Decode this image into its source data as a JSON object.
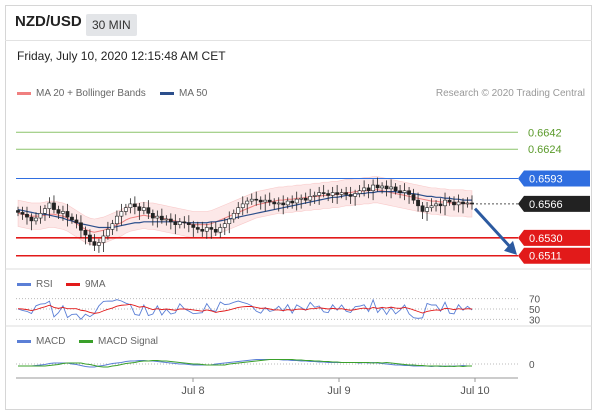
{
  "header": {
    "pair": "NZD/USD",
    "timeframe": "30 MIN"
  },
  "timestamp": "Friday, July 10, 2020 12:15:48 AM CET",
  "legend": {
    "bb_label": "MA 20 + Bollinger Bands",
    "ma50_label": "MA 50",
    "copyright": "Research © 2020 Trading Central"
  },
  "rsi_legend": {
    "rsi_label": "RSI",
    "ma_label": "9MA"
  },
  "macd_legend": {
    "macd_label": "MACD",
    "signal_label": "MACD Signal"
  },
  "colors": {
    "bb": "#f08080",
    "ma50": "#2c4f8c",
    "support": "#e21a1a",
    "resistance_blue": "#2f6ee0",
    "resistance_green": "#8cc46a",
    "up": "#ffffff",
    "down": "#222222",
    "arrow": "#2c5aa0"
  },
  "chart_data": {
    "type": "candlestick",
    "price_axis": {
      "range": [
        0.6498,
        0.6672
      ]
    },
    "levels": [
      {
        "value": 0.6642,
        "label": "0.6642",
        "kind": "resistance",
        "color": "#5a9a2a",
        "line": "#8cc46a"
      },
      {
        "value": 0.6624,
        "label": "0.6624",
        "kind": "resistance",
        "color": "#5a9a2a",
        "line": "#8cc46a"
      },
      {
        "value": 0.6593,
        "label": "0.6593",
        "kind": "resistance",
        "color": "#2f6ee0",
        "line": "#2f6ee0"
      },
      {
        "value": 0.6566,
        "label": "0.6566",
        "kind": "last",
        "color": "#222222",
        "line": "#555555"
      },
      {
        "value": 0.653,
        "label": "0.6530",
        "kind": "support",
        "color": "#e21a1a",
        "line": "#e21a1a"
      },
      {
        "value": 0.6511,
        "label": "0.6511",
        "kind": "support",
        "color": "#e21a1a",
        "line": "#e21a1a"
      }
    ],
    "x_labels": [
      "Jul 8",
      "Jul 9",
      "Jul 10"
    ],
    "close": [
      0.6557,
      0.6555,
      0.6552,
      0.6548,
      0.6551,
      0.6556,
      0.6561,
      0.6567,
      0.656,
      0.6556,
      0.6558,
      0.6552,
      0.6549,
      0.6546,
      0.6538,
      0.6533,
      0.6526,
      0.6522,
      0.6525,
      0.6532,
      0.6539,
      0.6545,
      0.6553,
      0.6558,
      0.6562,
      0.6566,
      0.6563,
      0.6559,
      0.6562,
      0.6556,
      0.6551,
      0.6553,
      0.6549,
      0.655,
      0.6547,
      0.6544,
      0.6547,
      0.6546,
      0.6544,
      0.6541,
      0.6539,
      0.6537,
      0.6541,
      0.6539,
      0.6536,
      0.6541,
      0.6545,
      0.655,
      0.6556,
      0.6562,
      0.6566,
      0.6569,
      0.6571,
      0.657,
      0.6568,
      0.657,
      0.6568,
      0.6566,
      0.6567,
      0.6565,
      0.6569,
      0.6567,
      0.6571,
      0.6572,
      0.657,
      0.6574,
      0.6575,
      0.6578,
      0.6577,
      0.6575,
      0.6578,
      0.6576,
      0.6578,
      0.6576,
      0.6574,
      0.6577,
      0.658,
      0.6583,
      0.658,
      0.6586,
      0.6583,
      0.6585,
      0.6582,
      0.6584,
      0.658,
      0.6578,
      0.658,
      0.6576,
      0.657,
      0.6564,
      0.6558,
      0.6562,
      0.6564,
      0.6566,
      0.6564,
      0.657,
      0.6568,
      0.6565,
      0.6568,
      0.6566,
      0.6567,
      0.6566
    ],
    "ma20": [
      0.6556,
      0.6555,
      0.6554,
      0.6553,
      0.6553,
      0.6553,
      0.6554,
      0.6555,
      0.6555,
      0.6554,
      0.6553,
      0.6551,
      0.6548,
      0.6545,
      0.6542,
      0.6539,
      0.6537,
      0.6536,
      0.6537,
      0.6538,
      0.654,
      0.6542,
      0.6544,
      0.6546,
      0.6549,
      0.6551,
      0.6552,
      0.6553,
      0.6554,
      0.6553,
      0.6553,
      0.6552,
      0.6551,
      0.655,
      0.6549,
      0.6548,
      0.6547,
      0.6546,
      0.6545,
      0.6544,
      0.6544,
      0.6544,
      0.6544,
      0.6545,
      0.6547,
      0.6549,
      0.6551,
      0.6553,
      0.6555,
      0.6557,
      0.6559,
      0.6561,
      0.6563,
      0.6565,
      0.6566,
      0.6567,
      0.6568,
      0.6569,
      0.657,
      0.657,
      0.6571,
      0.6571,
      0.6572,
      0.6572,
      0.6573,
      0.6573,
      0.6574,
      0.6574,
      0.6575,
      0.6575,
      0.6576,
      0.6576,
      0.6577,
      0.6578,
      0.6578,
      0.6579,
      0.6579,
      0.658,
      0.658,
      0.6581,
      0.6581,
      0.658,
      0.6579,
      0.6578,
      0.6577,
      0.6576,
      0.6575,
      0.6574,
      0.6573,
      0.6572,
      0.6571,
      0.657,
      0.6569,
      0.6569,
      0.6568,
      0.6568,
      0.6567,
      0.6567,
      0.6567,
      0.6567,
      0.6566,
      0.6566
    ],
    "bb_width": 0.0014,
    "ma50": [
      0.656,
      0.6559,
      0.6558,
      0.6557,
      0.6556,
      0.6555,
      0.6555,
      0.6554,
      0.6553,
      0.6552,
      0.6551,
      0.6549,
      0.6548,
      0.6546,
      0.6545,
      0.6544,
      0.6543,
      0.6542,
      0.6541,
      0.6541,
      0.6541,
      0.6541,
      0.6542,
      0.6543,
      0.6544,
      0.6545,
      0.6546,
      0.6546,
      0.6547,
      0.6547,
      0.6547,
      0.6547,
      0.6547,
      0.6547,
      0.6547,
      0.6547,
      0.6547,
      0.6546,
      0.6546,
      0.6546,
      0.6546,
      0.6546,
      0.6546,
      0.6547,
      0.6547,
      0.6548,
      0.6549,
      0.655,
      0.6551,
      0.6552,
      0.6553,
      0.6554,
      0.6555,
      0.6556,
      0.6557,
      0.6558,
      0.6559,
      0.656,
      0.6561,
      0.6562,
      0.6563,
      0.6564,
      0.6565,
      0.6566,
      0.6567,
      0.6568,
      0.6569,
      0.657,
      0.6571,
      0.6572,
      0.6573,
      0.6573,
      0.6574,
      0.6575,
      0.6575,
      0.6576,
      0.6577,
      0.6577,
      0.6578,
      0.6578,
      0.6579,
      0.6579,
      0.6579,
      0.6579,
      0.6579,
      0.6578,
      0.6578,
      0.6577,
      0.6577,
      0.6576,
      0.6575,
      0.6574,
      0.6574,
      0.6573,
      0.6573,
      0.6572,
      0.6572,
      0.6571,
      0.6571,
      0.657,
      0.657,
      0.657
    ],
    "rsi": {
      "ticks": [
        70,
        50,
        30
      ]
    },
    "macd": {
      "ticks": [
        0
      ]
    }
  }
}
